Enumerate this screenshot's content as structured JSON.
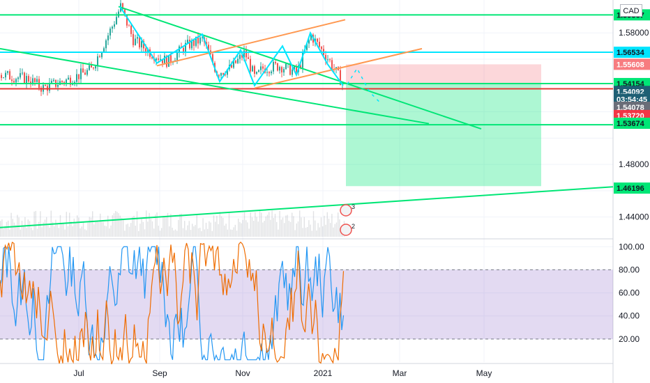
{
  "header": {
    "currency_label": "CAD"
  },
  "chart_data": [
    {
      "type": "candlestick",
      "title": "",
      "x_ticks": [
        "Jul",
        "Sep",
        "Nov",
        "2021",
        "Mar",
        "May"
      ],
      "y_ticks": [
        "1.58000",
        "1.48000",
        "1.44000"
      ],
      "ylim": [
        1.425,
        1.605
      ],
      "price_tags": [
        {
          "value": "1.59367",
          "style": "green",
          "price": 1.5937
        },
        {
          "value": "1.56534",
          "style": "cyan",
          "price": 1.5653
        },
        {
          "value": "1.55608",
          "style": "salmon",
          "price": 1.5561
        },
        {
          "value": "1.54154",
          "style": "green",
          "price": 1.5415
        },
        {
          "value": "1.54092",
          "style": "dark",
          "price": 1.5355
        },
        {
          "value": "03:54:45",
          "style": "dark",
          "price": 1.5295
        },
        {
          "value": "1.54078",
          "style": "gray",
          "price": 1.5235
        },
        {
          "value": "1.53720",
          "style": "red",
          "price": 1.5172
        },
        {
          "value": "1.53674",
          "style": "green",
          "price": 1.5113
        },
        {
          "value": "1.46196",
          "style": "green",
          "price": 1.462
        }
      ],
      "horizontal_lines": [
        {
          "price": 1.5937,
          "color": "#00e676"
        },
        {
          "price": 1.5653,
          "color": "#00e5ff"
        },
        {
          "price": 1.5415,
          "color": "#00e676"
        },
        {
          "price": 1.5375,
          "color": "#e53935"
        },
        {
          "price": 1.5102,
          "color": "#00e676"
        }
      ],
      "position_box": {
        "entry": 1.5415,
        "stop": 1.5561,
        "target": 1.4635
      },
      "event_markers": [
        "3",
        "2"
      ],
      "colors": {
        "up": "#26a69a",
        "down": "#ef5350",
        "line_green": "#00e676",
        "line_cyan": "#00e5ff",
        "line_orange": "#ff9850",
        "line_red": "#e53935"
      }
    },
    {
      "type": "line",
      "title": "",
      "y_ticks": [
        "100.00",
        "80.00",
        "60.00",
        "40.00",
        "20.00"
      ],
      "ylim": [
        0,
        105
      ],
      "band": [
        20,
        80
      ],
      "series": [
        {
          "color": "#2196f3"
        },
        {
          "color": "#ef6c00"
        }
      ]
    }
  ]
}
